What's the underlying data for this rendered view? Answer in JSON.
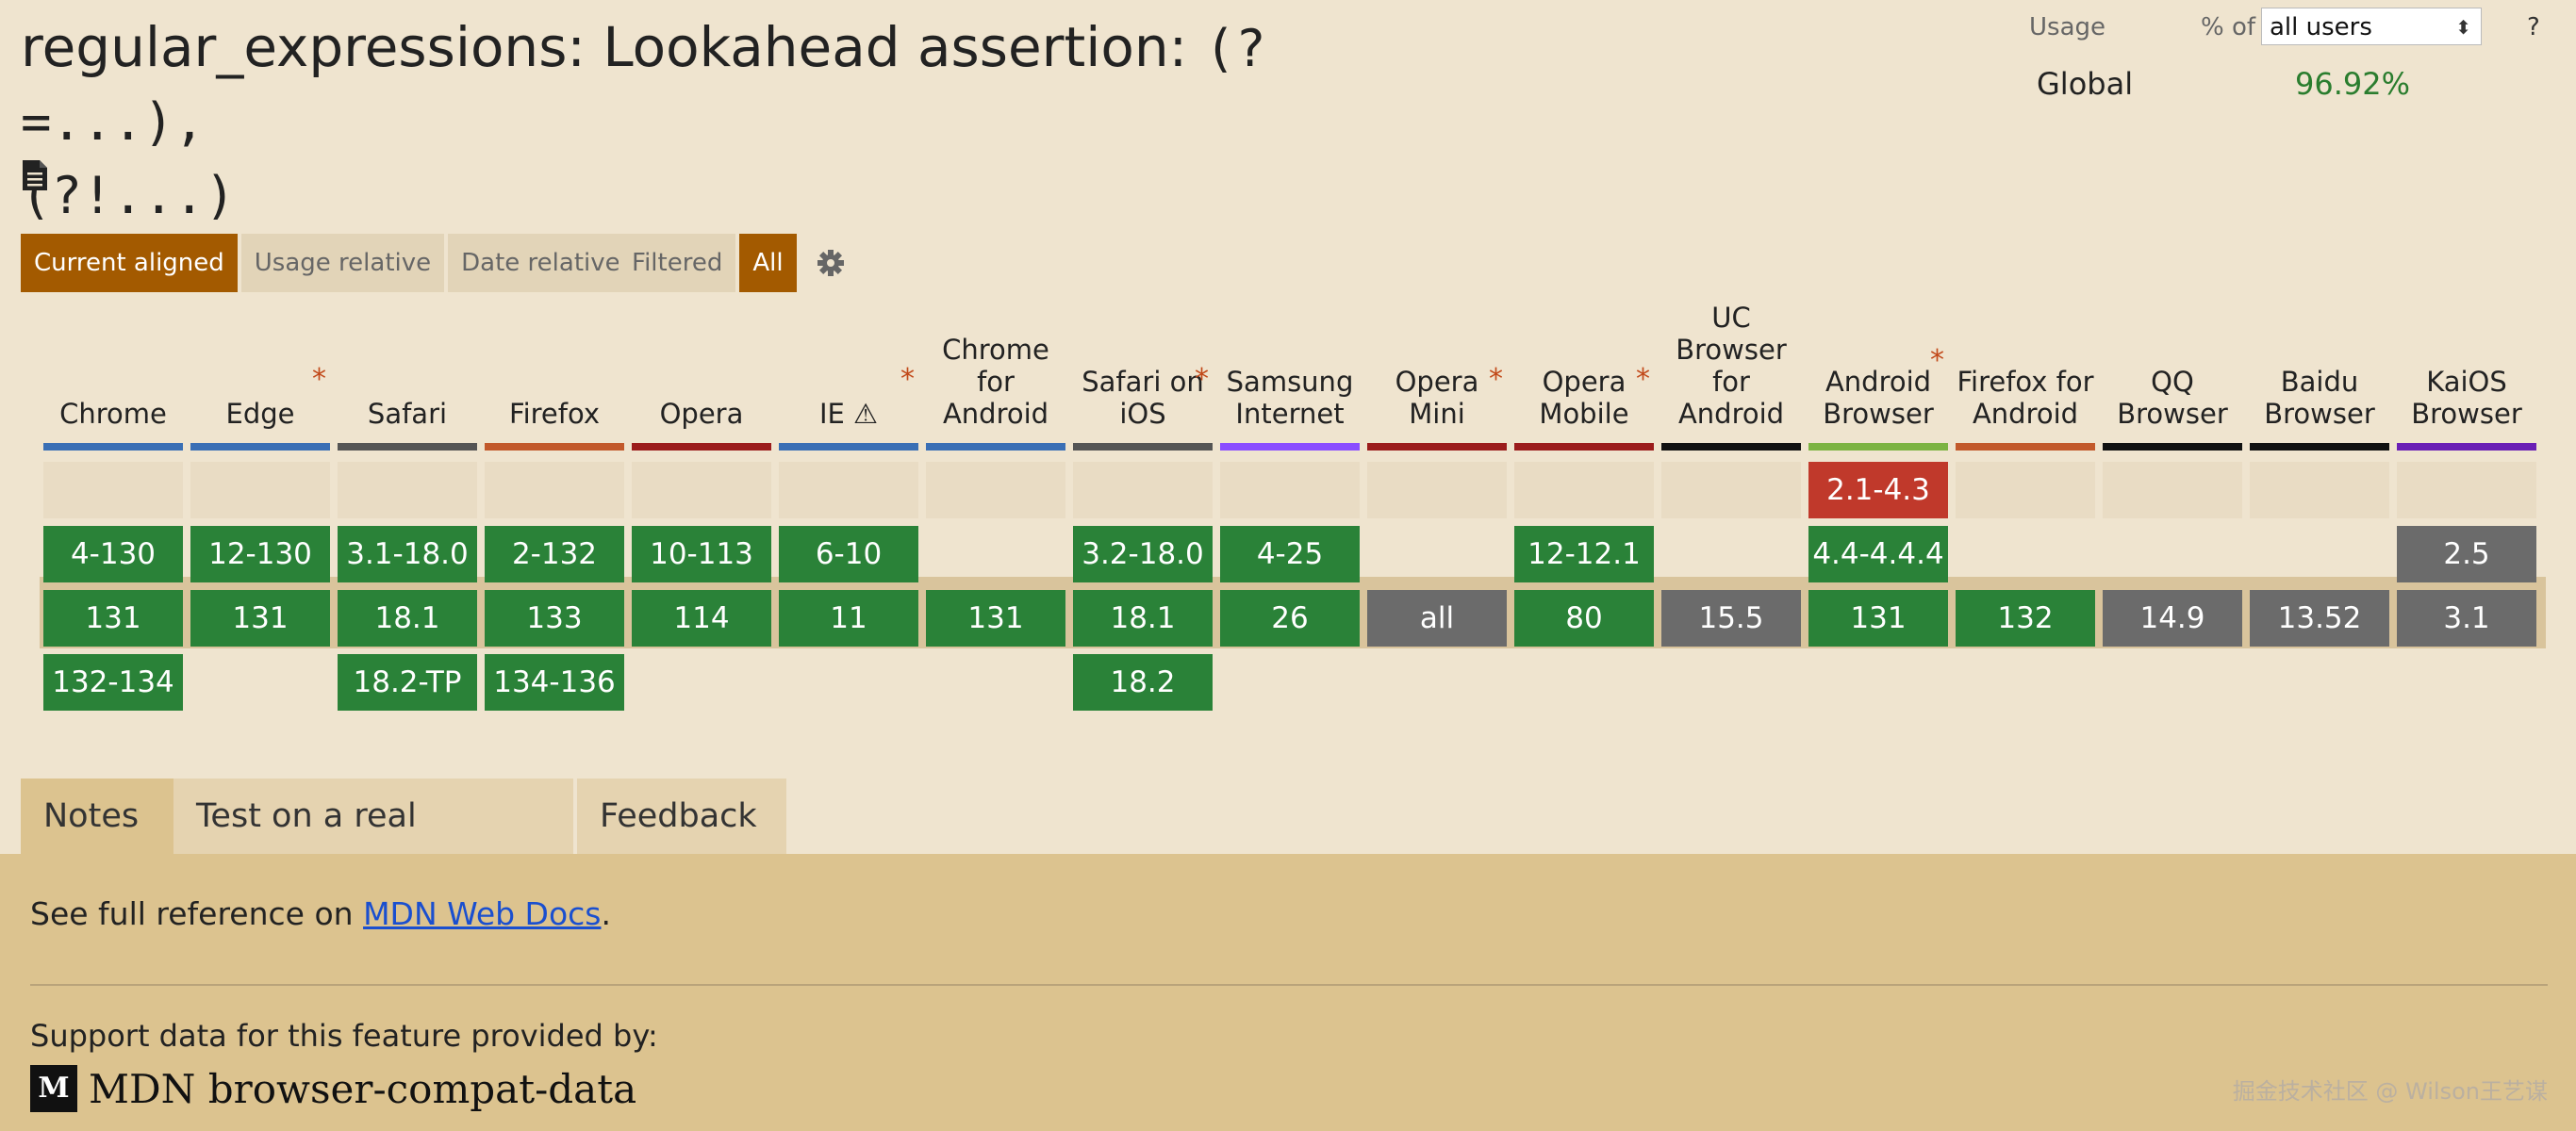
{
  "title": {
    "prefix": "regular_expressions: Lookahead assertion: ",
    "code_part1": "(?=...),",
    "code_part2": "(?!...)"
  },
  "usage": {
    "label": "Usage",
    "pct_of": "% of",
    "scope": "all users",
    "help": "?",
    "region": "Global",
    "value": "96.92%"
  },
  "modes": [
    "Current aligned",
    "Usage relative",
    "Date relative"
  ],
  "filters": [
    "Filtered",
    "All"
  ],
  "colors": {
    "supported": "#2a8238",
    "unsupported": "#c0392b",
    "unknown": "#6b6b6b",
    "accent": "#a35a00"
  },
  "browsers": [
    {
      "name": "Chrome",
      "star": "",
      "bar": "#3a6fb5",
      "cells": [
        "",
        "4-130",
        "131",
        "132-134"
      ],
      "status": [
        "",
        "y",
        "y",
        "y"
      ]
    },
    {
      "name": "Edge",
      "star": "*",
      "bar": "#3a6fb5",
      "cells": [
        "",
        "12-130",
        "131",
        ""
      ],
      "status": [
        "",
        "y",
        "y",
        ""
      ]
    },
    {
      "name": "Safari",
      "star": "",
      "bar": "#555555",
      "cells": [
        "",
        "3.1-18.0",
        "18.1",
        "18.2-TP"
      ],
      "status": [
        "",
        "y",
        "y",
        "y"
      ]
    },
    {
      "name": "Firefox",
      "star": "",
      "bar": "#c2592b",
      "cells": [
        "",
        "2-132",
        "133",
        "134-136"
      ],
      "status": [
        "",
        "y",
        "y",
        "y"
      ]
    },
    {
      "name": "Opera",
      "star": "",
      "bar": "#9b1c1c",
      "cells": [
        "",
        "10-113",
        "114",
        ""
      ],
      "status": [
        "",
        "y",
        "y",
        ""
      ]
    },
    {
      "name": "IE ⚠",
      "star": "*",
      "bar": "#3a6fb5",
      "cells": [
        "",
        "6-10",
        "11",
        ""
      ],
      "status": [
        "",
        "y",
        "y",
        ""
      ]
    },
    {
      "name": "Chrome for Android",
      "star": "",
      "bar": "#3a6fb5",
      "cells": [
        "",
        "",
        "131",
        ""
      ],
      "status": [
        "",
        "",
        "y",
        ""
      ]
    },
    {
      "name": "Safari on iOS",
      "star": "*",
      "bar": "#555555",
      "cells": [
        "",
        "3.2-18.0",
        "18.1",
        "18.2"
      ],
      "status": [
        "",
        "y",
        "y",
        "y"
      ]
    },
    {
      "name": "Samsung Internet",
      "star": "",
      "bar": "#8a4dff",
      "cells": [
        "",
        "4-25",
        "26",
        ""
      ],
      "status": [
        "",
        "y",
        "y",
        ""
      ]
    },
    {
      "name": "Opera Mini",
      "star": "*",
      "bar": "#9b1c1c",
      "cells": [
        "",
        "",
        "all",
        ""
      ],
      "status": [
        "",
        "",
        "u",
        ""
      ]
    },
    {
      "name": "Opera Mobile",
      "star": "*",
      "bar": "#9b1c1c",
      "cells": [
        "",
        "12-12.1",
        "80",
        ""
      ],
      "status": [
        "",
        "y",
        "y",
        ""
      ]
    },
    {
      "name": "UC Browser for Android",
      "star": "",
      "bar": "#111111",
      "cells": [
        "",
        "",
        "15.5",
        ""
      ],
      "status": [
        "",
        "",
        "u",
        ""
      ]
    },
    {
      "name": "Android Browser",
      "star": "*",
      "bar": "#7cb342",
      "cells": [
        "2.1-4.3",
        "4.4-4.4.4",
        "131",
        ""
      ],
      "status": [
        "n",
        "y",
        "y",
        ""
      ]
    },
    {
      "name": "Firefox for Android",
      "star": "",
      "bar": "#c2592b",
      "cells": [
        "",
        "",
        "132",
        ""
      ],
      "status": [
        "",
        "",
        "y",
        ""
      ]
    },
    {
      "name": "QQ Browser",
      "star": "",
      "bar": "#111111",
      "cells": [
        "",
        "",
        "14.9",
        ""
      ],
      "status": [
        "",
        "",
        "u",
        ""
      ]
    },
    {
      "name": "Baidu Browser",
      "star": "",
      "bar": "#111111",
      "cells": [
        "",
        "",
        "13.52",
        ""
      ],
      "status": [
        "",
        "",
        "u",
        ""
      ]
    },
    {
      "name": "KaiOS Browser",
      "star": "",
      "bar": "#6a1fb5",
      "cells": [
        "",
        "2.5",
        "3.1",
        ""
      ],
      "status": [
        "",
        "u",
        "u",
        ""
      ]
    }
  ],
  "tabs": [
    "Notes",
    "Test on a real browser",
    "Feedback"
  ],
  "notes": {
    "prefix": "See full reference on ",
    "link": "MDN Web Docs",
    "suffix": ".",
    "support": "Support data for this feature provided by:",
    "logo_mark": "M",
    "source": "MDN browser-compat-data",
    "watermark": "掘金技术社区 @ Wilson王艺谋"
  }
}
